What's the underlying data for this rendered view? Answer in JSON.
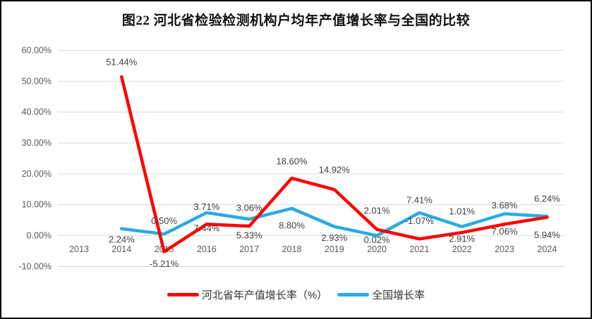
{
  "title": "图22 河北省检验检测机构户均年产值增长率与全国的比较",
  "colors": {
    "hebei_line": "#FF0000",
    "national_line": "#29ABE2",
    "gridline": "#D9D9D9",
    "axis_text": "#595959",
    "data_label_text": "#404040",
    "frame_border": "#000000",
    "background": "#FFFFFF"
  },
  "chart_data": {
    "type": "line",
    "title": "图22 河北省检验检测机构户均年产值增长率与全国的比较",
    "categories": [
      "2013",
      "2014",
      "2015",
      "2016",
      "2017",
      "2018",
      "2019",
      "2020",
      "2021",
      "2022",
      "2023",
      "2024"
    ],
    "grid": true,
    "legend_position": "bottom",
    "y_axis": {
      "ylim": [
        -10,
        60
      ],
      "tick_values": [
        60,
        50,
        40,
        30,
        20,
        10,
        0,
        -10
      ],
      "tick_labels": [
        "60.00%",
        "50.00%",
        "40.00%",
        "30.00%",
        "20.00%",
        "10.00%",
        "0.00%",
        "-10.00%"
      ]
    },
    "series": [
      {
        "id": "hebei",
        "name": "河北省年产值增长率（%）",
        "color_key": "hebei_line",
        "start_category_index": 1,
        "values": [
          51.44,
          -5.21,
          3.71,
          3.06,
          18.6,
          14.92,
          2.01,
          -1.07,
          1.01,
          3.68,
          5.94
        ],
        "labels": [
          "51.44%",
          "-5.21%",
          "3.71%",
          "3.06%",
          "18.60%",
          "14.92%",
          "2.01%",
          "-1.07%",
          "1.01%",
          "3.68%",
          "5.94%"
        ],
        "label_dy": [
          -21,
          17,
          -25,
          -26,
          -24,
          -28,
          -27,
          -26,
          -30,
          -27,
          25
        ]
      },
      {
        "id": "national",
        "name": "全国增长率",
        "color_key": "national_line",
        "start_category_index": 1,
        "values": [
          2.24,
          0.5,
          7.44,
          5.33,
          8.8,
          2.93,
          0.02,
          7.41,
          2.91,
          7.06,
          6.24
        ],
        "labels": [
          "2.24%",
          "0.50%",
          "7.44%",
          "5.33%",
          "8.80%",
          "2.93%",
          "0.02%",
          "7.41%",
          "2.91%",
          "7.06%",
          "6.24%"
        ],
        "label_dy": [
          15,
          -19,
          22,
          23,
          24,
          16,
          6,
          -18,
          17,
          25,
          -25
        ]
      }
    ]
  }
}
